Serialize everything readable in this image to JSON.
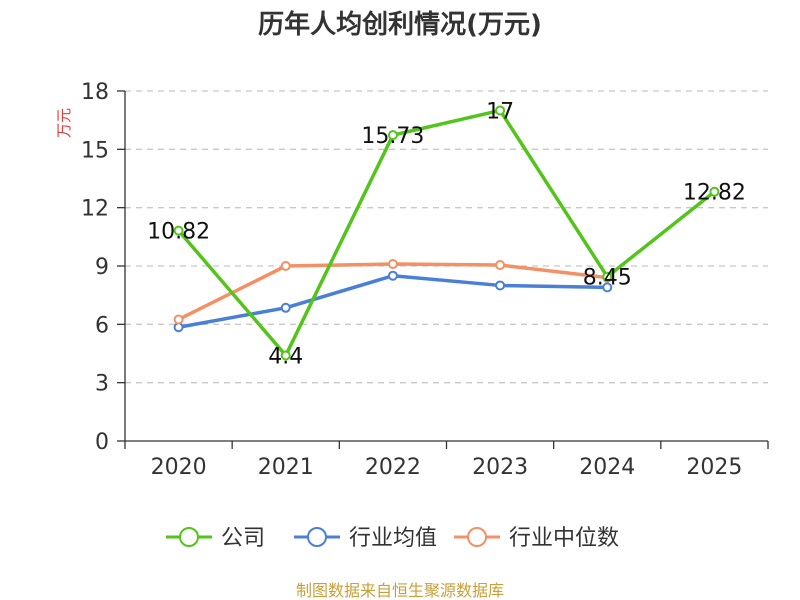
{
  "chart_data": {
    "type": "line",
    "title": "历年人均创利情况(万元)",
    "ylabel": "万元",
    "xlabel": "",
    "categories": [
      "2020",
      "2021",
      "2022",
      "2023",
      "2024",
      "2025"
    ],
    "ylim": [
      0,
      18
    ],
    "yticks": [
      0,
      3,
      6,
      9,
      12,
      15,
      18
    ],
    "grid": true,
    "legend_position": "bottom",
    "series": [
      {
        "name": "公司",
        "color": "#52c41a",
        "values": [
          10.82,
          4.4,
          15.73,
          17,
          8.45,
          12.82
        ],
        "labels": [
          "10.82",
          "4.4",
          "15.73",
          "17",
          "8.45",
          "12.82"
        ]
      },
      {
        "name": "行业均值",
        "color": "#4a7fd8",
        "values": [
          5.85,
          6.85,
          8.5,
          8.0,
          7.9,
          null
        ]
      },
      {
        "name": "行业中位数",
        "color": "#f39064",
        "values": [
          6.25,
          9.0,
          9.1,
          9.05,
          8.4,
          null
        ]
      }
    ]
  },
  "footer": {
    "source": "制图数据来自恒生聚源数据库"
  }
}
